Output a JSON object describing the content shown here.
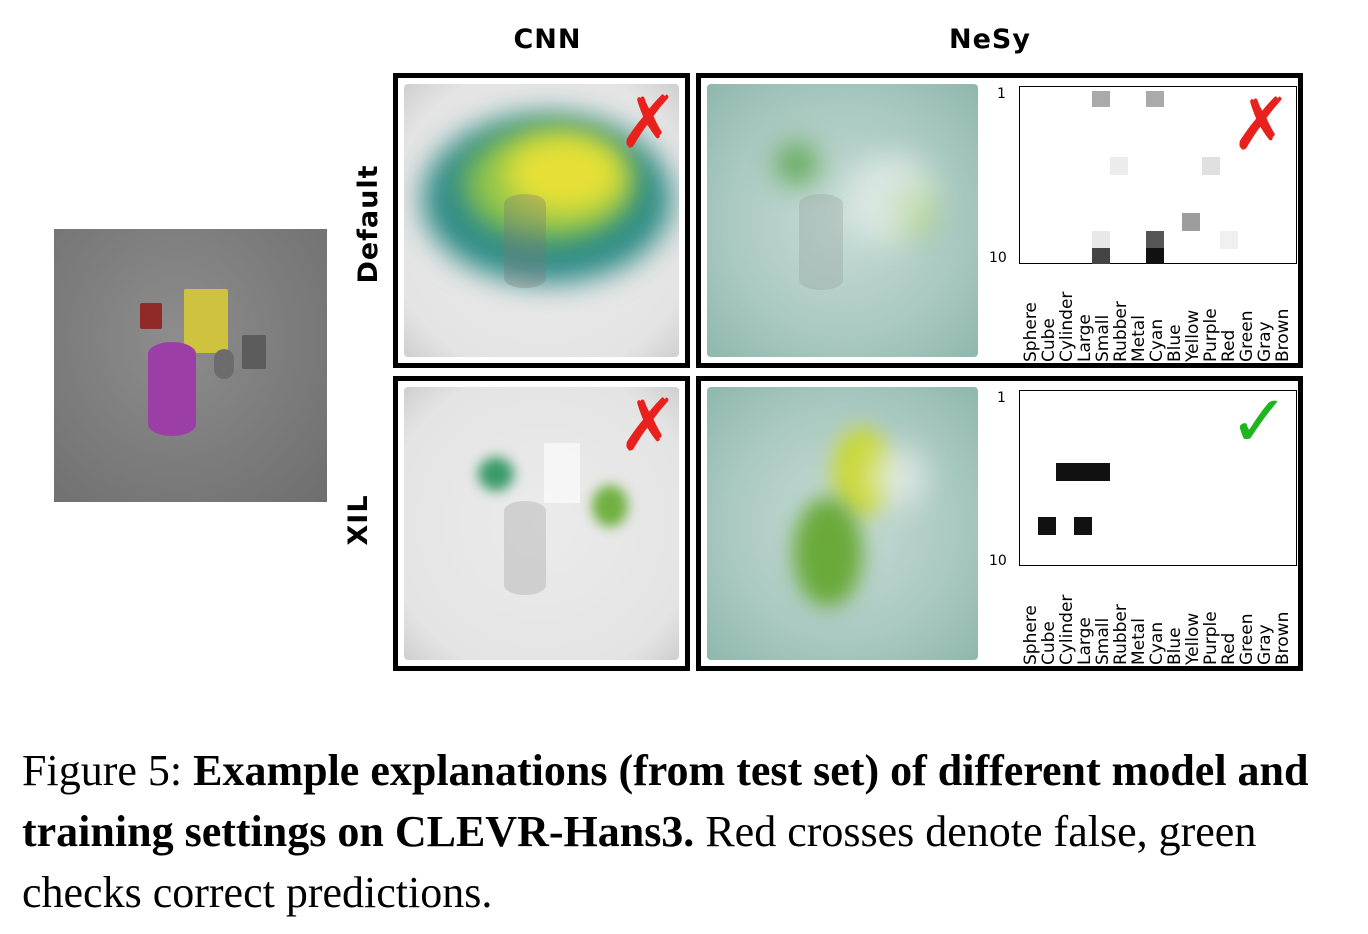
{
  "headers": {
    "cnn": "CNN",
    "nesy": "NeSy",
    "row_default": "Default",
    "row_xil": "XIL"
  },
  "marks": {
    "cross": "✗",
    "check": "✓"
  },
  "plot": {
    "y_ticks": [
      "1",
      "10"
    ],
    "x_labels": [
      "Sphere",
      "Cube",
      "Cylinder",
      "Large",
      "Small",
      "Rubber",
      "Metal",
      "Cyan",
      "Blue",
      "Yellow",
      "Purple",
      "Red",
      "Green",
      "Gray",
      "Brown"
    ]
  },
  "colors": {
    "cross": "#e8211c",
    "check": "#1fb51f"
  },
  "caption": {
    "prefix": "Figure 5: ",
    "bold": "Example explanations (from test set) of different model and training settings on CLEVR-Hans3.",
    "rest": " Red crosses denote false, green checks correct predictions."
  }
}
